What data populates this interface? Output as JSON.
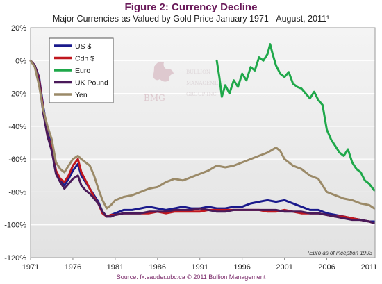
{
  "chart_data": {
    "type": "line",
    "title": "Figure 2: Currency Decline",
    "subtitle": "Major Currencies as Valued by Gold Price January 1971 - August, 2011¹",
    "source": "Source: fx.sauder.ubc.ca © 2011 Bullion Management",
    "note": "¹Euro as of inception 1993",
    "xlim": [
      1971,
      2011.7
    ],
    "ylim": [
      -120,
      20
    ],
    "x_ticks": [
      "1971",
      "1976",
      "1981",
      "1986",
      "1991",
      "1996",
      "2001",
      "2006",
      "2011"
    ],
    "x_tick_values": [
      1971,
      1976,
      1981,
      1986,
      1991,
      1996,
      2001,
      2006,
      2011
    ],
    "y_ticks": [
      "20%",
      "0%",
      "-20%",
      "-40%",
      "-60%",
      "-80%",
      "-100%",
      "-120%"
    ],
    "y_tick_values": [
      20,
      0,
      -20,
      -40,
      -60,
      -80,
      -100,
      -120
    ],
    "grid": true,
    "legend_position": "top-left",
    "watermark": {
      "initials": "BMG",
      "name": [
        "BULLION",
        "MANAGEMENT",
        "GROUP INC."
      ]
    },
    "series": [
      {
        "name": "US $",
        "color": "#1a1a8c",
        "points": [
          [
            1971,
            0
          ],
          [
            1971.5,
            -3
          ],
          [
            1972,
            -10
          ],
          [
            1972.5,
            -28
          ],
          [
            1973,
            -44
          ],
          [
            1973.5,
            -52
          ],
          [
            1974,
            -68
          ],
          [
            1974.5,
            -73
          ],
          [
            1975,
            -76
          ],
          [
            1975.5,
            -72
          ],
          [
            1976,
            -67
          ],
          [
            1976.6,
            -63
          ],
          [
            1977,
            -70
          ],
          [
            1977.5,
            -74
          ],
          [
            1978,
            -78
          ],
          [
            1978.5,
            -82
          ],
          [
            1979,
            -86
          ],
          [
            1979.5,
            -92
          ],
          [
            1980,
            -95
          ],
          [
            1980.5,
            -94
          ],
          [
            1981,
            -93
          ],
          [
            1982,
            -91
          ],
          [
            1983,
            -91
          ],
          [
            1984,
            -90
          ],
          [
            1985,
            -89
          ],
          [
            1986,
            -90
          ],
          [
            1987,
            -91
          ],
          [
            1988,
            -90
          ],
          [
            1989,
            -89
          ],
          [
            1990,
            -90
          ],
          [
            1991,
            -90
          ],
          [
            1992,
            -89
          ],
          [
            1993,
            -90
          ],
          [
            1994,
            -90
          ],
          [
            1995,
            -89
          ],
          [
            1996,
            -89
          ],
          [
            1997,
            -87
          ],
          [
            1998,
            -86
          ],
          [
            1999,
            -85
          ],
          [
            2000,
            -86
          ],
          [
            2001,
            -85
          ],
          [
            2002,
            -87
          ],
          [
            2003,
            -89
          ],
          [
            2004,
            -91
          ],
          [
            2005,
            -91
          ],
          [
            2006,
            -93
          ],
          [
            2007,
            -94
          ],
          [
            2008,
            -95
          ],
          [
            2009,
            -96
          ],
          [
            2010,
            -97
          ],
          [
            2011,
            -98
          ],
          [
            2011.6,
            -98
          ]
        ]
      },
      {
        "name": "Cdn $",
        "color": "#c0171e",
        "points": [
          [
            1971,
            0
          ],
          [
            1971.5,
            -3
          ],
          [
            1972,
            -11
          ],
          [
            1972.5,
            -30
          ],
          [
            1973,
            -46
          ],
          [
            1973.5,
            -53
          ],
          [
            1974,
            -67
          ],
          [
            1974.5,
            -72
          ],
          [
            1975,
            -74
          ],
          [
            1975.5,
            -70
          ],
          [
            1976,
            -64
          ],
          [
            1976.6,
            -60
          ],
          [
            1977,
            -68
          ],
          [
            1977.5,
            -73
          ],
          [
            1978,
            -78
          ],
          [
            1978.5,
            -83
          ],
          [
            1979,
            -87
          ],
          [
            1979.5,
            -93
          ],
          [
            1980,
            -95
          ],
          [
            1980.5,
            -94
          ],
          [
            1981,
            -94
          ],
          [
            1982,
            -93
          ],
          [
            1983,
            -93
          ],
          [
            1984,
            -93
          ],
          [
            1985,
            -93
          ],
          [
            1986,
            -92
          ],
          [
            1987,
            -93
          ],
          [
            1988,
            -92
          ],
          [
            1989,
            -92
          ],
          [
            1990,
            -92
          ],
          [
            1991,
            -92
          ],
          [
            1992,
            -91
          ],
          [
            1993,
            -91
          ],
          [
            1994,
            -91
          ],
          [
            1995,
            -91
          ],
          [
            1996,
            -91
          ],
          [
            1997,
            -91
          ],
          [
            1998,
            -91
          ],
          [
            1999,
            -92
          ],
          [
            2000,
            -92
          ],
          [
            2001,
            -91
          ],
          [
            2002,
            -92
          ],
          [
            2003,
            -93
          ],
          [
            2004,
            -93
          ],
          [
            2005,
            -93
          ],
          [
            2006,
            -94
          ],
          [
            2007,
            -95
          ],
          [
            2008,
            -95
          ],
          [
            2009,
            -96
          ],
          [
            2010,
            -97
          ],
          [
            2011,
            -98
          ],
          [
            2011.6,
            -99
          ]
        ]
      },
      {
        "name": "Euro",
        "color": "#1fa84a",
        "points": [
          [
            1993,
            0
          ],
          [
            1993.3,
            -10
          ],
          [
            1993.6,
            -22
          ],
          [
            1994,
            -15
          ],
          [
            1994.5,
            -20
          ],
          [
            1995,
            -12
          ],
          [
            1995.5,
            -16
          ],
          [
            1996,
            -8
          ],
          [
            1996.5,
            -12
          ],
          [
            1997,
            -4
          ],
          [
            1997.5,
            -6
          ],
          [
            1998,
            2
          ],
          [
            1998.5,
            0
          ],
          [
            1999,
            4
          ],
          [
            1999.3,
            10
          ],
          [
            1999.6,
            4
          ],
          [
            2000,
            -3
          ],
          [
            2000.5,
            -8
          ],
          [
            2001,
            -10
          ],
          [
            2001.5,
            -7
          ],
          [
            2002,
            -14
          ],
          [
            2002.5,
            -16
          ],
          [
            2003,
            -17
          ],
          [
            2003.5,
            -20
          ],
          [
            2004,
            -23
          ],
          [
            2004.5,
            -19
          ],
          [
            2005,
            -24
          ],
          [
            2005.5,
            -27
          ],
          [
            2006,
            -42
          ],
          [
            2006.5,
            -48
          ],
          [
            2007,
            -52
          ],
          [
            2007.5,
            -56
          ],
          [
            2008,
            -58
          ],
          [
            2008.5,
            -54
          ],
          [
            2009,
            -62
          ],
          [
            2009.5,
            -66
          ],
          [
            2010,
            -68
          ],
          [
            2010.5,
            -73
          ],
          [
            2011,
            -75
          ],
          [
            2011.6,
            -79
          ]
        ]
      },
      {
        "name": "UK Pound",
        "color": "#4a1a5a",
        "points": [
          [
            1971,
            0
          ],
          [
            1971.5,
            -3
          ],
          [
            1972,
            -12
          ],
          [
            1972.5,
            -32
          ],
          [
            1973,
            -46
          ],
          [
            1973.5,
            -55
          ],
          [
            1974,
            -69
          ],
          [
            1974.5,
            -74
          ],
          [
            1975,
            -78
          ],
          [
            1975.5,
            -75
          ],
          [
            1976,
            -72
          ],
          [
            1976.6,
            -70
          ],
          [
            1977,
            -76
          ],
          [
            1977.5,
            -79
          ],
          [
            1978,
            -81
          ],
          [
            1978.5,
            -84
          ],
          [
            1979,
            -87
          ],
          [
            1979.5,
            -92
          ],
          [
            1980,
            -95
          ],
          [
            1980.5,
            -95
          ],
          [
            1981,
            -94
          ],
          [
            1982,
            -93
          ],
          [
            1983,
            -93
          ],
          [
            1984,
            -93
          ],
          [
            1985,
            -92
          ],
          [
            1986,
            -92
          ],
          [
            1987,
            -92
          ],
          [
            1988,
            -91
          ],
          [
            1989,
            -91
          ],
          [
            1990,
            -91
          ],
          [
            1991,
            -90
          ],
          [
            1992,
            -91
          ],
          [
            1993,
            -92
          ],
          [
            1994,
            -92
          ],
          [
            1995,
            -91
          ],
          [
            1996,
            -91
          ],
          [
            1997,
            -91
          ],
          [
            1998,
            -91
          ],
          [
            1999,
            -91
          ],
          [
            2000,
            -91
          ],
          [
            2001,
            -92
          ],
          [
            2002,
            -92
          ],
          [
            2003,
            -92
          ],
          [
            2004,
            -93
          ],
          [
            2005,
            -93
          ],
          [
            2006,
            -94
          ],
          [
            2007,
            -95
          ],
          [
            2008,
            -96
          ],
          [
            2009,
            -97
          ],
          [
            2010,
            -97
          ],
          [
            2011,
            -98
          ],
          [
            2011.6,
            -99
          ]
        ]
      },
      {
        "name": "Yen",
        "color": "#9b8a68",
        "points": [
          [
            1971,
            0
          ],
          [
            1971.5,
            -4
          ],
          [
            1972,
            -15
          ],
          [
            1972.5,
            -30
          ],
          [
            1973,
            -40
          ],
          [
            1973.5,
            -48
          ],
          [
            1974,
            -62
          ],
          [
            1974.5,
            -66
          ],
          [
            1975,
            -68
          ],
          [
            1975.5,
            -64
          ],
          [
            1976,
            -60
          ],
          [
            1976.6,
            -58
          ],
          [
            1977,
            -60
          ],
          [
            1977.5,
            -62
          ],
          [
            1978,
            -64
          ],
          [
            1978.5,
            -70
          ],
          [
            1979,
            -78
          ],
          [
            1979.5,
            -85
          ],
          [
            1980,
            -90
          ],
          [
            1980.5,
            -88
          ],
          [
            1981,
            -85
          ],
          [
            1982,
            -83
          ],
          [
            1983,
            -82
          ],
          [
            1984,
            -80
          ],
          [
            1985,
            -78
          ],
          [
            1986,
            -77
          ],
          [
            1987,
            -74
          ],
          [
            1988,
            -72
          ],
          [
            1989,
            -73
          ],
          [
            1990,
            -71
          ],
          [
            1991,
            -69
          ],
          [
            1992,
            -67
          ],
          [
            1993,
            -64
          ],
          [
            1994,
            -65
          ],
          [
            1995,
            -64
          ],
          [
            1996,
            -62
          ],
          [
            1997,
            -60
          ],
          [
            1998,
            -58
          ],
          [
            1999,
            -56
          ],
          [
            2000,
            -53
          ],
          [
            2000.5,
            -55
          ],
          [
            2001,
            -60
          ],
          [
            2002,
            -64
          ],
          [
            2003,
            -66
          ],
          [
            2004,
            -70
          ],
          [
            2005,
            -72
          ],
          [
            2006,
            -80
          ],
          [
            2007,
            -82
          ],
          [
            2008,
            -84
          ],
          [
            2009,
            -85
          ],
          [
            2010,
            -87
          ],
          [
            2011,
            -88
          ],
          [
            2011.6,
            -90
          ]
        ]
      }
    ]
  }
}
